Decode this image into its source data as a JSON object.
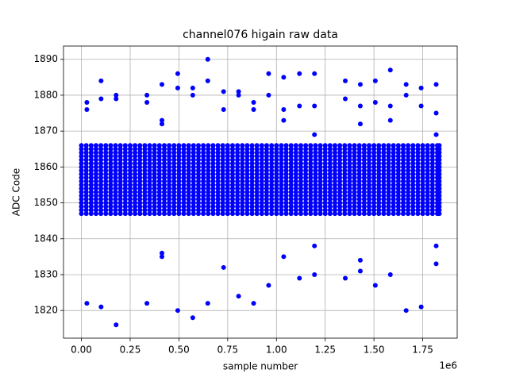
{
  "chart_data": {
    "type": "scatter",
    "title": "channel076 higain raw data",
    "x_label": "sample number",
    "y_label": "ADC Code",
    "x_offset_label": "1e6",
    "color": "#0000ff",
    "grid": true,
    "xlim": [
      -91750,
      1926750
    ],
    "ylim": [
      1812.3,
      1893.7
    ],
    "xticks": [
      {
        "value": 0,
        "label": "0.00"
      },
      {
        "value": 250000,
        "label": "0.25"
      },
      {
        "value": 500000,
        "label": "0.50"
      },
      {
        "value": 750000,
        "label": "0.75"
      },
      {
        "value": 1000000,
        "label": "1.00"
      },
      {
        "value": 1250000,
        "label": "1.25"
      },
      {
        "value": 1500000,
        "label": "1.50"
      },
      {
        "value": 1750000,
        "label": "1.75"
      }
    ],
    "yticks": [
      1820,
      1830,
      1840,
      1850,
      1860,
      1870,
      1880,
      1890
    ],
    "band": {
      "x": [
        0,
        25000,
        50000,
        75000,
        100000,
        125000,
        150000,
        175000,
        200000,
        225000,
        250000,
        275000,
        300000,
        325000,
        350000,
        375000,
        400000,
        425000,
        450000,
        475000,
        500000,
        525000,
        550000,
        575000,
        600000,
        625000,
        650000,
        675000,
        700000,
        725000,
        750000,
        775000,
        800000,
        825000,
        850000,
        875000,
        900000,
        925000,
        950000,
        975000,
        1000000,
        1025000,
        1050000,
        1075000,
        1100000,
        1125000,
        1150000,
        1175000,
        1200000,
        1225000,
        1250000,
        1275000,
        1300000,
        1325000,
        1350000,
        1375000,
        1400000,
        1425000,
        1450000,
        1475000,
        1500000,
        1525000,
        1550000,
        1575000,
        1600000,
        1625000,
        1650000,
        1675000,
        1700000,
        1725000,
        1750000,
        1775000,
        1800000,
        1825000,
        1835000
      ],
      "levels": [
        1847,
        1848,
        1849,
        1850,
        1851,
        1852,
        1853,
        1854,
        1855,
        1856,
        1857,
        1858,
        1859,
        1860,
        1861,
        1862,
        1863,
        1864,
        1865,
        1866
      ]
    },
    "x": [
      28000,
      28000,
      28000,
      101000,
      101000,
      101000,
      178000,
      178000,
      178000,
      336000,
      336000,
      336000,
      413000,
      413000,
      413000,
      413000,
      413000,
      494000,
      494000,
      494000,
      571000,
      571000,
      571000,
      648000,
      648000,
      648000,
      729000,
      729000,
      729000,
      806000,
      806000,
      806000,
      883000,
      883000,
      883000,
      960000,
      960000,
      960000,
      1037000,
      1037000,
      1037000,
      1037000,
      1118000,
      1118000,
      1118000,
      1195000,
      1195000,
      1195000,
      1195000,
      1195000,
      1353000,
      1353000,
      1353000,
      1430000,
      1430000,
      1430000,
      1430000,
      1430000,
      1507000,
      1507000,
      1507000,
      1584000,
      1584000,
      1584000,
      1584000,
      1665000,
      1665000,
      1665000,
      1742000,
      1742000,
      1742000,
      1819000,
      1819000,
      1819000,
      1819000,
      1819000
    ],
    "values": [
      1878,
      1876,
      1822,
      1884,
      1879,
      1821,
      1880,
      1879,
      1816,
      1880,
      1878,
      1822,
      1883,
      1873,
      1872,
      1836,
      1835,
      1886,
      1882,
      1820,
      1882,
      1880,
      1818,
      1890,
      1884,
      1822,
      1881,
      1876,
      1832,
      1881,
      1880,
      1824,
      1878,
      1876,
      1822,
      1886,
      1880,
      1827,
      1885,
      1876,
      1873,
      1835,
      1886,
      1877,
      1829,
      1886,
      1877,
      1869,
      1838,
      1830,
      1884,
      1879,
      1829,
      1883,
      1877,
      1872,
      1834,
      1831,
      1884,
      1878,
      1827,
      1887,
      1877,
      1873,
      1830,
      1883,
      1880,
      1820,
      1882,
      1877,
      1821,
      1883,
      1875,
      1869,
      1838,
      1833
    ]
  }
}
